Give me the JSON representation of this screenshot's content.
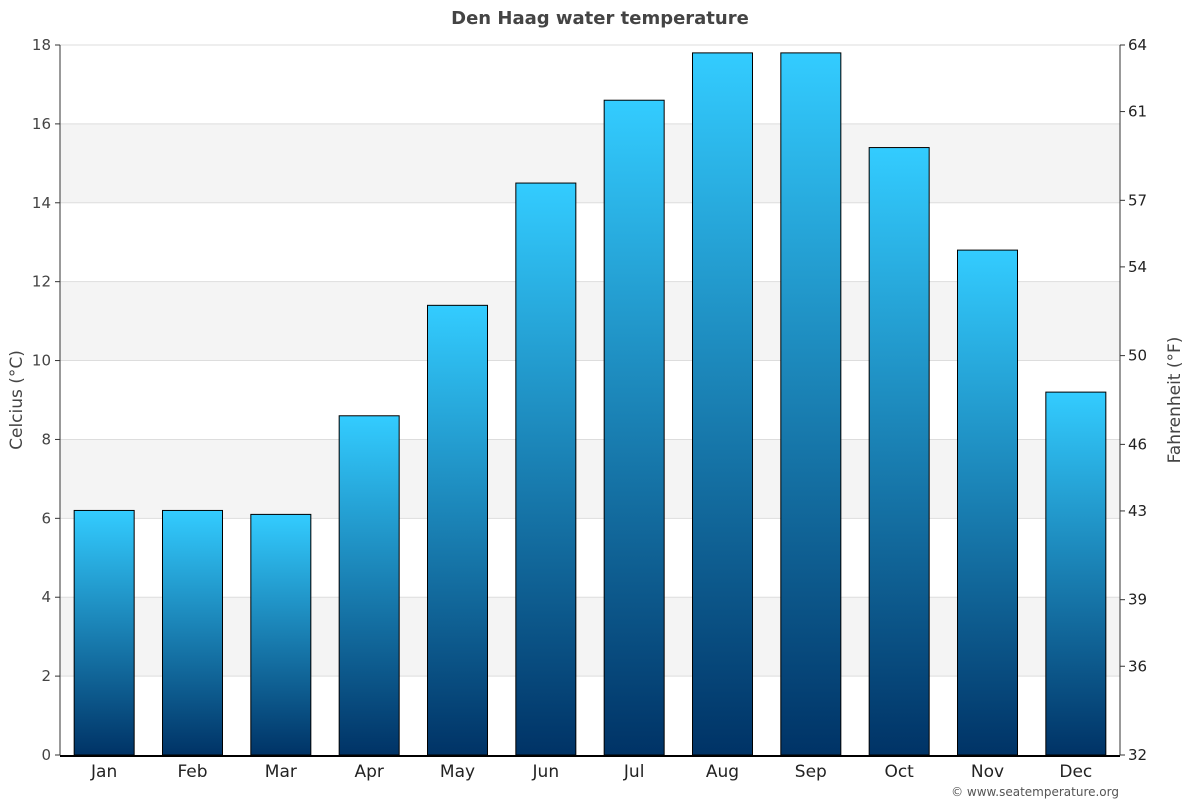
{
  "chart_data": {
    "type": "bar",
    "title": "Den Haag water temperature",
    "categories": [
      "Jan",
      "Feb",
      "Mar",
      "Apr",
      "May",
      "Jun",
      "Jul",
      "Aug",
      "Sep",
      "Oct",
      "Nov",
      "Dec"
    ],
    "values": [
      6.2,
      6.2,
      6.1,
      8.6,
      11.4,
      14.5,
      16.6,
      17.8,
      17.8,
      15.4,
      12.8,
      9.2
    ],
    "ylabel": "Celcius (°C)",
    "ylabel_right": "Fahrenheit (°F)",
    "ylim": [
      0,
      18
    ],
    "yticks": [
      0,
      2,
      4,
      6,
      8,
      10,
      12,
      14,
      16,
      18
    ],
    "ylim_right": [
      32,
      64
    ],
    "yticks_right": [
      32,
      36,
      39,
      43,
      46,
      50,
      54,
      57,
      61,
      64
    ],
    "grid": true,
    "grid_bands": "alternating",
    "colors": {
      "bar_top": "#33ccff",
      "bar_bottom": "#003366",
      "bar_border": "#000000",
      "band": "#f4f4f4",
      "grid": "#dddddd"
    }
  },
  "credit": "© www.seatemperature.org"
}
